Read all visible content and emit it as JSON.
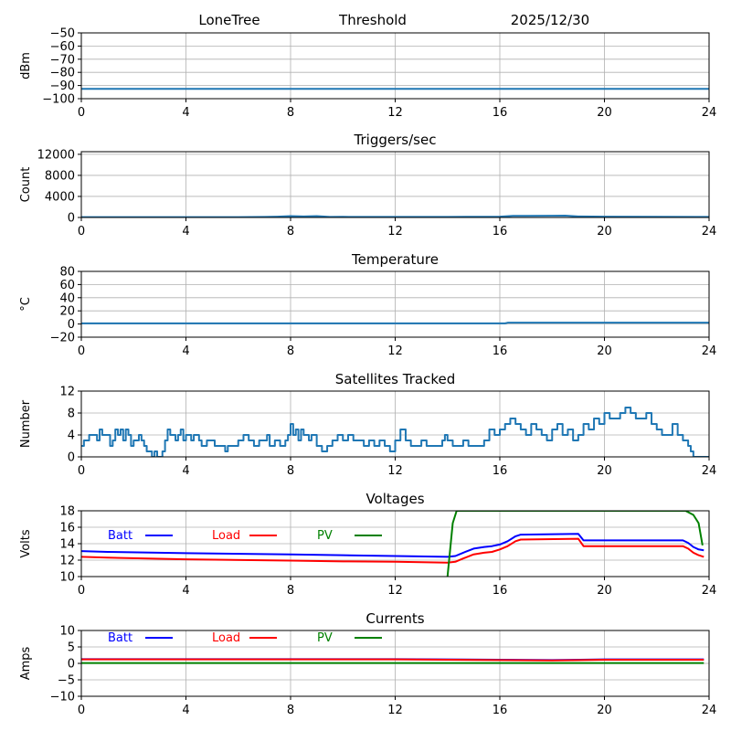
{
  "header": {
    "station": "LoneTree",
    "mode": "Threshold",
    "date": "2025/12/30"
  },
  "colors": {
    "series_default": "#1f77b4",
    "batt": "#0000ff",
    "load": "#ff0000",
    "pv": "#008000",
    "grid": "#b0b0b0",
    "axis": "#000000"
  },
  "chart_data": [
    {
      "id": "noise",
      "type": "line",
      "title": "",
      "xlabel": "",
      "ylabel": "dBm",
      "xlim": [
        0,
        24
      ],
      "ylim": [
        -100,
        -50
      ],
      "xticks": [
        0,
        4,
        8,
        12,
        16,
        20,
        24
      ],
      "xtick_labels": [
        "0",
        "4",
        "8",
        "12",
        "16",
        "20",
        "24"
      ],
      "yticks": [
        -100,
        -90,
        -80,
        -70,
        -60,
        -50
      ],
      "ytick_labels": [
        "−100",
        "−90",
        "−80",
        "−70",
        "−60",
        "−50"
      ],
      "grid": true,
      "series": [
        {
          "name": "noise",
          "color": "#1f77b4",
          "x": [
            0,
            24
          ],
          "y": [
            -92.5,
            -92.5
          ]
        }
      ]
    },
    {
      "id": "triggers",
      "type": "line",
      "title": "Triggers/sec",
      "xlabel": "",
      "ylabel": "Count",
      "xlim": [
        0,
        24
      ],
      "ylim": [
        0,
        12500
      ],
      "xticks": [
        0,
        4,
        8,
        12,
        16,
        20,
        24
      ],
      "xtick_labels": [
        "0",
        "4",
        "8",
        "12",
        "16",
        "20",
        "24"
      ],
      "yticks": [
        0,
        4000,
        8000,
        12000
      ],
      "ytick_labels": [
        "0",
        "4000",
        "8000",
        "12000"
      ],
      "grid": true,
      "series": [
        {
          "name": "triggers",
          "color": "#1f77b4",
          "x": [
            0,
            2,
            4,
            6,
            7,
            7.5,
            8,
            8.5,
            9,
            9.5,
            10,
            12,
            14,
            16,
            16.5,
            17,
            18,
            18.5,
            19,
            20,
            22,
            24
          ],
          "y": [
            60,
            60,
            60,
            70,
            100,
            150,
            250,
            200,
            250,
            100,
            120,
            110,
            110,
            150,
            300,
            300,
            320,
            350,
            200,
            150,
            120,
            100
          ]
        }
      ]
    },
    {
      "id": "temperature",
      "type": "line",
      "title": "Temperature",
      "xlabel": "",
      "ylabel": "°C",
      "xlim": [
        0,
        24
      ],
      "ylim": [
        -20,
        80
      ],
      "xticks": [
        0,
        4,
        8,
        12,
        16,
        20,
        24
      ],
      "xtick_labels": [
        "0",
        "4",
        "8",
        "12",
        "16",
        "20",
        "24"
      ],
      "yticks": [
        -20,
        0,
        20,
        40,
        60,
        80
      ],
      "ytick_labels": [
        "−20",
        "0",
        "20",
        "40",
        "60",
        "80"
      ],
      "grid": true,
      "series": [
        {
          "name": "temperature",
          "color": "#1f77b4",
          "x": [
            0,
            16.2,
            16.3,
            24
          ],
          "y": [
            1,
            1,
            2,
            2
          ]
        }
      ]
    },
    {
      "id": "satellites",
      "type": "line",
      "title": "Satellites Tracked",
      "xlabel": "",
      "ylabel": "Number",
      "xlim": [
        0,
        24
      ],
      "ylim": [
        0,
        12
      ],
      "xticks": [
        0,
        4,
        8,
        12,
        16,
        20,
        24
      ],
      "xtick_labels": [
        "0",
        "4",
        "8",
        "12",
        "16",
        "20",
        "24"
      ],
      "yticks": [
        0,
        4,
        8,
        12
      ],
      "ytick_labels": [
        "0",
        "4",
        "8",
        "12"
      ],
      "grid": true,
      "series": [
        {
          "name": "satellites",
          "color": "#1f77b4",
          "x": [
            0,
            0.1,
            0.2,
            0.3,
            0.5,
            0.6,
            0.7,
            0.8,
            0.9,
            1.0,
            1.1,
            1.2,
            1.3,
            1.4,
            1.5,
            1.6,
            1.7,
            1.8,
            1.9,
            2.0,
            2.2,
            2.3,
            2.4,
            2.5,
            2.6,
            2.7,
            2.8,
            2.9,
            3.0,
            3.1,
            3.2,
            3.3,
            3.4,
            3.6,
            3.7,
            3.8,
            3.9,
            4.0,
            4.2,
            4.3,
            4.5,
            4.6,
            4.8,
            5.0,
            5.1,
            5.3,
            5.5,
            5.6,
            5.8,
            6.0,
            6.2,
            6.4,
            6.6,
            6.8,
            7.0,
            7.1,
            7.2,
            7.4,
            7.6,
            7.8,
            7.9,
            8.0,
            8.1,
            8.2,
            8.3,
            8.4,
            8.5,
            8.7,
            8.8,
            9.0,
            9.2,
            9.4,
            9.6,
            9.8,
            10.0,
            10.2,
            10.4,
            10.6,
            10.8,
            10.9,
            11.0,
            11.2,
            11.4,
            11.6,
            11.8,
            12.0,
            12.2,
            12.4,
            12.6,
            12.8,
            13.0,
            13.2,
            13.4,
            13.6,
            13.8,
            13.9,
            14.0,
            14.2,
            14.4,
            14.6,
            14.8,
            15.0,
            15.2,
            15.4,
            15.6,
            15.8,
            16.0,
            16.2,
            16.4,
            16.6,
            16.8,
            17.0,
            17.2,
            17.4,
            17.6,
            17.8,
            18.0,
            18.2,
            18.4,
            18.6,
            18.8,
            19.0,
            19.2,
            19.4,
            19.6,
            19.8,
            20.0,
            20.2,
            20.4,
            20.6,
            20.8,
            21.0,
            21.2,
            21.4,
            21.6,
            21.8,
            22.0,
            22.2,
            22.4,
            22.6,
            22.8,
            23.0,
            23.1,
            23.2,
            23.3,
            23.4,
            23.6,
            23.8,
            24.0
          ],
          "y": [
            2,
            3,
            3,
            4,
            4,
            3,
            5,
            4,
            4,
            4,
            2,
            3,
            5,
            4,
            5,
            3,
            5,
            4,
            2,
            3,
            4,
            3,
            2,
            1,
            1,
            0,
            1,
            0,
            0,
            1,
            3,
            5,
            4,
            3,
            4,
            5,
            3,
            4,
            3,
            4,
            3,
            2,
            3,
            3,
            2,
            2,
            1,
            2,
            2,
            3,
            4,
            3,
            2,
            3,
            3,
            4,
            2,
            3,
            2,
            3,
            4,
            6,
            4,
            5,
            3,
            5,
            4,
            3,
            4,
            2,
            1,
            2,
            3,
            4,
            3,
            4,
            3,
            3,
            2,
            2,
            3,
            2,
            3,
            2,
            1,
            3,
            5,
            3,
            2,
            2,
            3,
            2,
            2,
            2,
            3,
            4,
            3,
            2,
            2,
            3,
            2,
            2,
            2,
            3,
            5,
            4,
            5,
            6,
            7,
            6,
            5,
            4,
            6,
            5,
            4,
            3,
            5,
            6,
            4,
            5,
            3,
            4,
            6,
            5,
            7,
            6,
            8,
            7,
            7,
            8,
            9,
            8,
            7,
            7,
            8,
            6,
            5,
            4,
            4,
            6,
            4,
            3,
            3,
            2,
            1,
            0,
            0,
            0,
            0
          ]
        }
      ]
    },
    {
      "id": "voltages",
      "type": "line",
      "title": "Voltages",
      "xlabel": "",
      "ylabel": "Volts",
      "xlim": [
        0,
        24
      ],
      "ylim": [
        10,
        18
      ],
      "xticks": [
        0,
        4,
        8,
        12,
        16,
        20,
        24
      ],
      "xtick_labels": [
        "0",
        "4",
        "8",
        "12",
        "16",
        "20",
        "24"
      ],
      "yticks": [
        10,
        12,
        14,
        16,
        18
      ],
      "ytick_labels": [
        "10",
        "12",
        "14",
        "16",
        "18"
      ],
      "grid": true,
      "legend": [
        "Batt",
        "Load",
        "PV"
      ],
      "series": [
        {
          "name": "Batt",
          "color": "#0000ff",
          "x": [
            0,
            1,
            4,
            8,
            10,
            12,
            14.0,
            14.3,
            14.6,
            15.0,
            15.4,
            15.7,
            16.0,
            16.3,
            16.6,
            16.8,
            19.0,
            19.2,
            23.0,
            23.2,
            23.4,
            23.6,
            23.8
          ],
          "y": [
            13.1,
            13.0,
            12.85,
            12.7,
            12.6,
            12.5,
            12.4,
            12.5,
            12.9,
            13.4,
            13.6,
            13.7,
            13.9,
            14.3,
            14.9,
            15.1,
            15.2,
            14.4,
            14.4,
            14.1,
            13.6,
            13.3,
            13.2
          ]
        },
        {
          "name": "Load",
          "color": "#ff0000",
          "x": [
            0,
            1,
            4,
            8,
            10,
            12,
            14.0,
            14.3,
            14.6,
            15.0,
            15.4,
            15.7,
            16.0,
            16.3,
            16.6,
            16.8,
            19.0,
            19.2,
            23.0,
            23.2,
            23.4,
            23.6,
            23.8
          ],
          "y": [
            12.4,
            12.3,
            12.1,
            11.95,
            11.85,
            11.8,
            11.7,
            11.8,
            12.2,
            12.7,
            12.9,
            13.0,
            13.3,
            13.7,
            14.3,
            14.5,
            14.6,
            13.7,
            13.7,
            13.4,
            12.9,
            12.6,
            12.4
          ]
        },
        {
          "name": "PV",
          "color": "#008000",
          "x": [
            14.0,
            14.2,
            14.35,
            23.1,
            23.4,
            23.6,
            23.75
          ],
          "y": [
            10.0,
            16.5,
            18.0,
            18.0,
            17.5,
            16.5,
            13.8
          ]
        }
      ]
    },
    {
      "id": "currents",
      "type": "line",
      "title": "Currents",
      "xlabel": "",
      "ylabel": "Amps",
      "xlim": [
        0,
        24
      ],
      "ylim": [
        -10,
        10
      ],
      "xticks": [
        0,
        4,
        8,
        12,
        16,
        20,
        24
      ],
      "xtick_labels": [
        "0",
        "4",
        "8",
        "12",
        "16",
        "20",
        "24"
      ],
      "yticks": [
        -10,
        -5,
        0,
        5,
        10
      ],
      "ytick_labels": [
        "−10",
        "−5",
        "0",
        "5",
        "10"
      ],
      "grid": true,
      "legend": [
        "Batt",
        "Load",
        "PV"
      ],
      "series": [
        {
          "name": "Batt",
          "color": "#0000ff",
          "x": [
            0,
            12,
            16,
            18,
            20,
            23.8
          ],
          "y": [
            1.3,
            1.3,
            1.1,
            1.0,
            1.2,
            1.2
          ]
        },
        {
          "name": "Load",
          "color": "#ff0000",
          "x": [
            0,
            12,
            16,
            18,
            20,
            23.8
          ],
          "y": [
            1.2,
            1.2,
            1.0,
            0.9,
            1.1,
            1.1
          ]
        },
        {
          "name": "PV",
          "color": "#008000",
          "x": [
            0,
            23.8
          ],
          "y": [
            0.1,
            0.1
          ]
        }
      ]
    }
  ]
}
